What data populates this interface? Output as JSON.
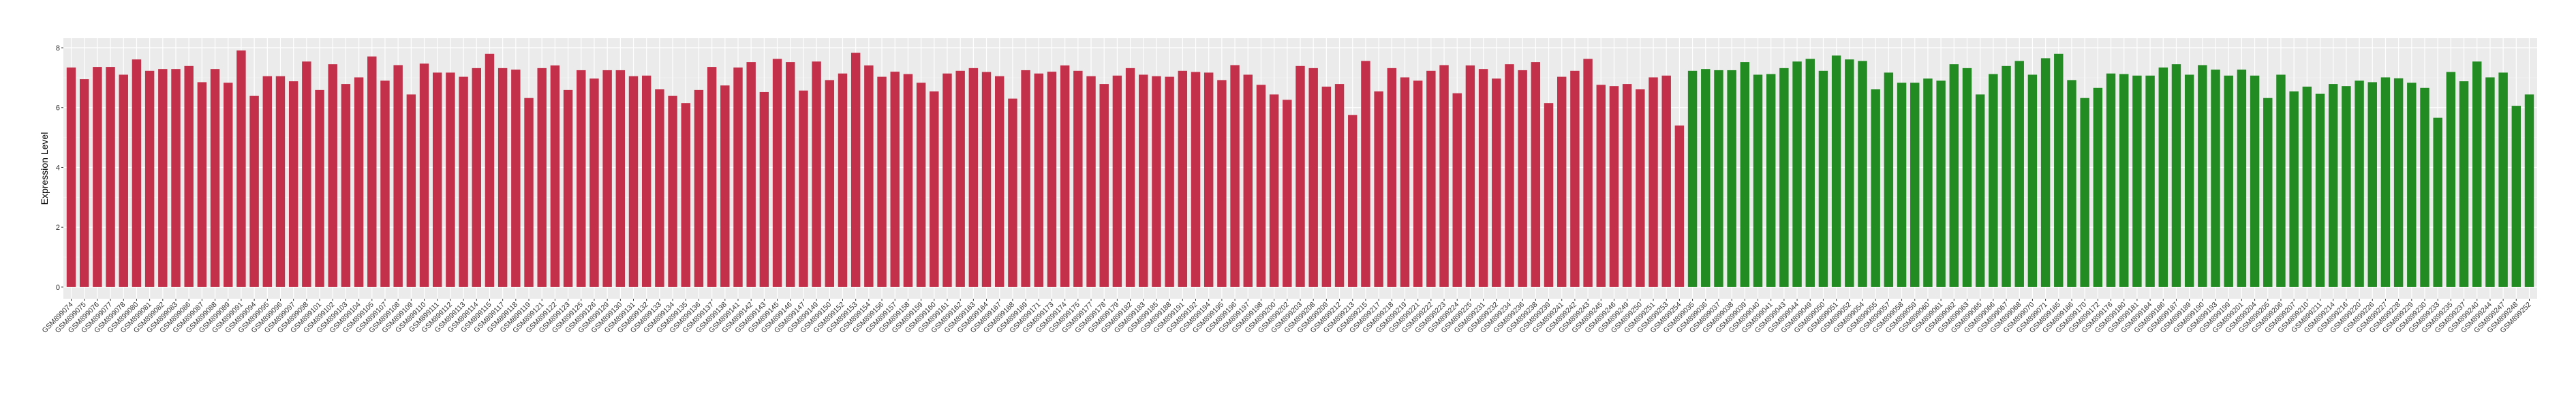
{
  "chart_data": {
    "type": "bar",
    "title": "",
    "xlabel": "",
    "ylabel": "Expression Level",
    "ylim": [
      -0.39,
      8.32
    ],
    "yticks": [
      0,
      2,
      4,
      6,
      8
    ],
    "grid": true,
    "legend": "none",
    "panel_background": "#EBEBEB",
    "series": [
      {
        "color": "#C3304A",
        "categories": [
          "GSM899074",
          "GSM899075",
          "GSM899076",
          "GSM899077",
          "GSM899078",
          "GSM899080",
          "GSM899081",
          "GSM899082",
          "GSM899083",
          "GSM899086",
          "GSM899087",
          "GSM899088",
          "GSM899089",
          "GSM899091",
          "GSM899094",
          "GSM899095",
          "GSM899096",
          "GSM899097",
          "GSM899098",
          "GSM899101",
          "GSM899102",
          "GSM899103",
          "GSM899104",
          "GSM899105",
          "GSM899107",
          "GSM899108",
          "GSM899109",
          "GSM899110",
          "GSM899111",
          "GSM899112",
          "GSM899113",
          "GSM899114",
          "GSM899115",
          "GSM899117",
          "GSM899118",
          "GSM899119",
          "GSM899121",
          "GSM899122",
          "GSM899123",
          "GSM899125",
          "GSM899126",
          "GSM899129",
          "GSM899130",
          "GSM899131",
          "GSM899132",
          "GSM899133",
          "GSM899134",
          "GSM899135",
          "GSM899136",
          "GSM899137",
          "GSM899138",
          "GSM899141",
          "GSM899142",
          "GSM899143",
          "GSM899145",
          "GSM899146",
          "GSM899147",
          "GSM899149",
          "GSM899150",
          "GSM899152",
          "GSM899153",
          "GSM899154",
          "GSM899156",
          "GSM899157",
          "GSM899158",
          "GSM899159",
          "GSM899160",
          "GSM899161",
          "GSM899162",
          "GSM899163",
          "GSM899164",
          "GSM899167",
          "GSM899168",
          "GSM899169",
          "GSM899171",
          "GSM899173",
          "GSM899174",
          "GSM899175",
          "GSM899177",
          "GSM899178",
          "GSM899179",
          "GSM899182",
          "GSM899183",
          "GSM899185",
          "GSM899188",
          "GSM899191",
          "GSM899192",
          "GSM899194",
          "GSM899195",
          "GSM899196",
          "GSM899197",
          "GSM899198",
          "GSM899200",
          "GSM899202",
          "GSM899203",
          "GSM899208",
          "GSM899209",
          "GSM899212",
          "GSM899213",
          "GSM899215",
          "GSM899217",
          "GSM899218",
          "GSM899219",
          "GSM899221",
          "GSM899222",
          "GSM899223",
          "GSM899224",
          "GSM899225",
          "GSM899231",
          "GSM899232",
          "GSM899234",
          "GSM899236",
          "GSM899238",
          "GSM899239",
          "GSM899241",
          "GSM899242",
          "GSM899243",
          "GSM899245",
          "GSM899246",
          "GSM899249",
          "GSM899250",
          "GSM899251",
          "GSM899253",
          "GSM899254"
        ],
        "values": [
          7.34,
          6.95,
          7.36,
          7.36,
          7.1,
          7.61,
          7.23,
          7.29,
          7.29,
          7.39,
          6.85,
          7.29,
          6.83,
          7.91,
          6.39,
          7.05,
          7.05,
          6.88,
          7.54,
          6.59,
          7.45,
          6.79,
          7.01,
          7.71,
          6.9,
          7.42,
          6.44,
          7.47,
          7.17,
          7.17,
          7.03,
          7.32,
          7.8,
          7.32,
          7.27,
          6.32,
          7.32,
          7.41,
          6.59,
          7.25,
          6.97,
          7.25,
          7.25,
          7.05,
          7.07,
          6.61,
          6.39,
          6.15,
          6.59,
          7.36,
          6.74,
          7.34,
          7.52,
          6.52,
          7.63,
          7.52,
          6.57,
          7.54,
          6.92,
          7.14,
          7.83,
          7.41,
          7.03,
          7.2,
          7.12,
          6.83,
          6.54,
          7.14,
          7.23,
          7.32,
          7.19,
          7.05,
          6.3,
          7.25,
          7.14,
          7.2,
          7.41,
          7.23,
          7.05,
          6.79,
          7.07,
          7.32,
          7.1,
          7.05,
          7.03,
          7.23,
          7.19,
          7.17,
          6.92,
          7.42,
          7.1,
          6.76,
          6.44,
          6.26,
          7.39,
          7.32,
          6.7,
          6.79,
          5.75,
          7.56,
          6.54,
          7.32,
          7.01,
          6.9,
          7.23,
          7.42,
          6.48,
          7.41,
          7.29,
          6.97,
          7.45,
          7.25,
          7.52,
          6.15,
          7.03,
          7.23,
          7.63,
          6.76,
          6.72,
          6.79,
          6.61,
          7.01,
          7.07,
          5.4
        ]
      },
      {
        "color": "#228B22",
        "categories": [
          "GSM899035",
          "GSM899036",
          "GSM899037",
          "GSM899038",
          "GSM899039",
          "GSM899040",
          "GSM899041",
          "GSM899043",
          "GSM899044",
          "GSM899049",
          "GSM899050",
          "GSM899051",
          "GSM899052",
          "GSM899054",
          "GSM899055",
          "GSM899057",
          "GSM899058",
          "GSM899059",
          "GSM899060",
          "GSM899061",
          "GSM899062",
          "GSM899063",
          "GSM899065",
          "GSM899066",
          "GSM899067",
          "GSM899068",
          "GSM899070",
          "GSM899071",
          "GSM899165",
          "GSM899166",
          "GSM899170",
          "GSM899172",
          "GSM899176",
          "GSM899180",
          "GSM899181",
          "GSM899184",
          "GSM899186",
          "GSM899187",
          "GSM899189",
          "GSM899190",
          "GSM899193",
          "GSM899199",
          "GSM899201",
          "GSM899204",
          "GSM899205",
          "GSM899206",
          "GSM899207",
          "GSM899210",
          "GSM899211",
          "GSM899214",
          "GSM899216",
          "GSM899220",
          "GSM899226",
          "GSM899227",
          "GSM899228",
          "GSM899229",
          "GSM899230",
          "GSM899233",
          "GSM899235",
          "GSM899237",
          "GSM899240",
          "GSM899244",
          "GSM899247",
          "GSM899248",
          "GSM899252"
        ],
        "values": [
          7.23,
          7.29,
          7.25,
          7.25,
          7.52,
          7.1,
          7.12,
          7.32,
          7.54,
          7.63,
          7.23,
          7.74,
          7.61,
          7.56,
          6.61,
          7.17,
          6.83,
          6.83,
          6.97,
          6.9,
          7.45,
          7.32,
          6.44,
          7.12,
          7.39,
          7.56,
          7.1,
          7.65,
          7.8,
          6.92,
          6.32,
          6.66,
          7.14,
          7.12,
          7.07,
          7.07,
          7.34,
          7.45,
          7.1,
          7.42,
          7.27,
          7.07,
          7.27,
          7.07,
          6.32,
          7.1,
          6.54,
          6.7,
          6.46,
          6.79,
          6.72,
          6.9,
          6.85,
          7.01,
          6.98,
          6.83,
          6.66,
          5.66,
          7.19,
          6.88,
          7.54,
          7.01,
          7.17,
          6.06,
          6.44
        ]
      }
    ]
  }
}
